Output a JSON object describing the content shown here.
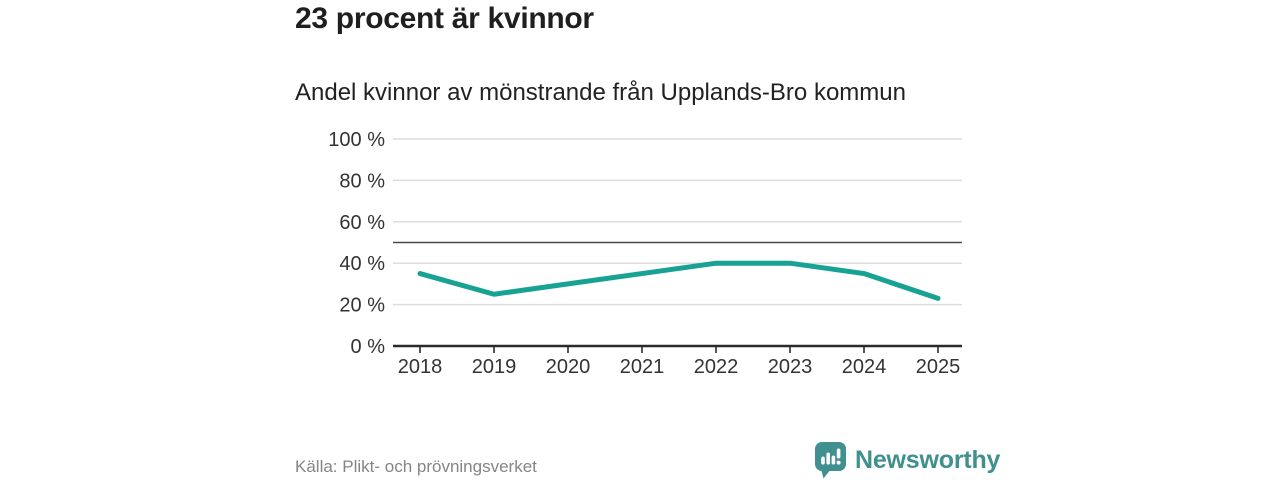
{
  "header": {
    "title": "23 procent är kvinnor",
    "subtitle": "Andel kvinnor av mönstrande från Upplands-Bro kommun"
  },
  "footer": {
    "source": "Källa: Plikt- och prövningsverket",
    "brand": "Newsworthy"
  },
  "colors": {
    "line": "#17a294",
    "grid": "#dddddd",
    "reference_line": "#4a4a4a",
    "axis": "#2b2b2b",
    "tick_text": "#333333",
    "brand_teal": "#3f908e"
  },
  "chart_data": {
    "type": "line",
    "title": "23 procent är kvinnor",
    "subtitle": "Andel kvinnor av mönstrande från Upplands-Bro kommun",
    "x": [
      2018,
      2019,
      2020,
      2021,
      2022,
      2023,
      2024,
      2025
    ],
    "series": [
      {
        "name": "Andel kvinnor",
        "values": [
          35,
          25,
          30,
          35,
          40,
          40,
          35,
          23
        ]
      }
    ],
    "xlabel": "",
    "ylabel": "",
    "ylim": [
      0,
      100
    ],
    "yticks": [
      0,
      20,
      40,
      60,
      80,
      100
    ],
    "ytick_suffix": " %",
    "reference_line": 50,
    "grid": true,
    "legend": false
  }
}
